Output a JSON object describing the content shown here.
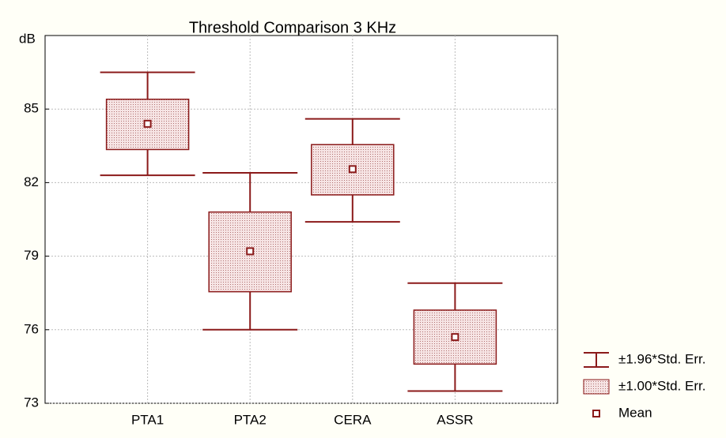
{
  "chart_data": {
    "type": "box",
    "title": "Threshold Comparison 3 KHz",
    "y_label": "dB",
    "categories": [
      "PTA1",
      "PTA2",
      "CERA",
      "ASSR"
    ],
    "mean": [
      84.4,
      79.2,
      82.55,
      75.7
    ],
    "box_low": [
      83.35,
      77.55,
      81.5,
      74.6
    ],
    "box_high": [
      85.4,
      80.8,
      83.55,
      76.8
    ],
    "whisker_low": [
      82.3,
      76.0,
      80.4,
      73.5
    ],
    "whisker_high": [
      86.5,
      82.4,
      84.6,
      77.9
    ],
    "legend": [
      "±1.96*Std. Err.",
      "±1.00*Std. Err.",
      "Mean"
    ],
    "color": "#8b1a1a",
    "ylim": [
      73,
      88
    ],
    "yticks": [
      73,
      76,
      79,
      82,
      85
    ],
    "grid": true
  }
}
